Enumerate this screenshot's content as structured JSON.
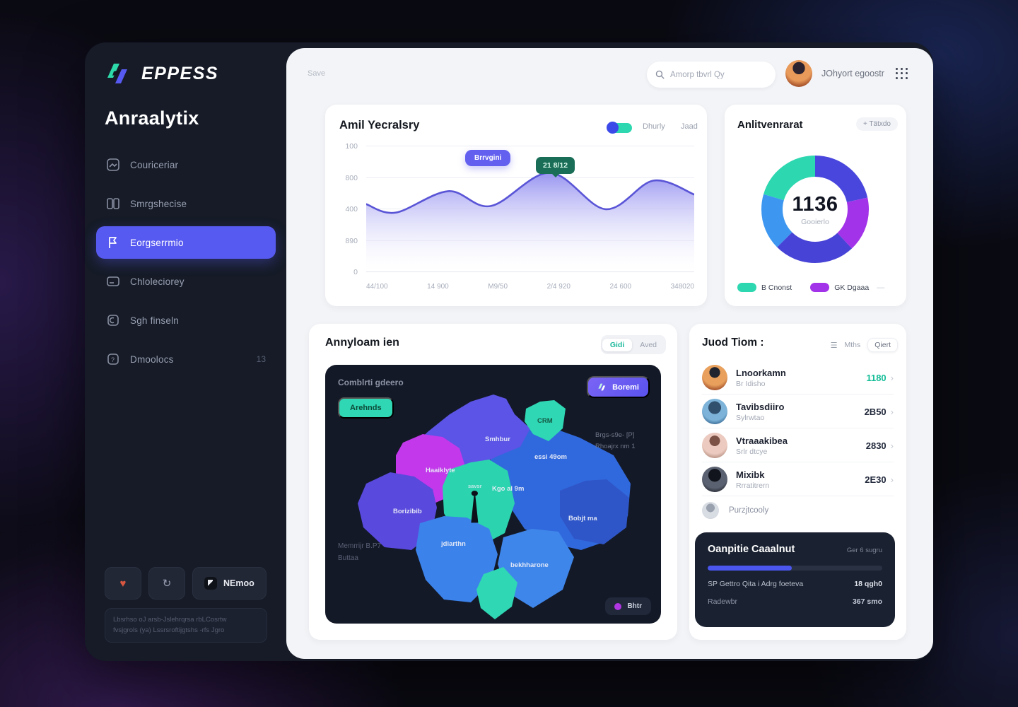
{
  "colors": {
    "accent": "#575af0",
    "teal": "#2dd7b0",
    "purple": "#a233e8",
    "blue": "#3d97f0",
    "indigo": "#4946dd",
    "green_value": "#15bd97",
    "line": "#5a55d6",
    "dark_card": "#1a2130",
    "map_bg": "#141927"
  },
  "sidebar": {
    "logo_text": "EPPESS",
    "title": "Anraalytix",
    "items": [
      {
        "label": "Couriceriar"
      },
      {
        "label": "Smrgshecise"
      },
      {
        "label": "Eorgserrmio"
      },
      {
        "label": "Chloleciorey"
      },
      {
        "label": "Sgh finseln"
      },
      {
        "label": "Dmoolocs",
        "badge": "13"
      }
    ],
    "footer_button_label": "NEmoo",
    "note_line1": "Lbsrhso oJ arsb-Jslehrqrsa rbLCosrtw",
    "note_line2": "fvsjgrols (ya) Lssrsroftijgtshs -rfs Jgro"
  },
  "topbar": {
    "save_label": "Save",
    "search_placeholder": "Amorp tbvrl Qy",
    "user_name": "JOhyort egoostr"
  },
  "usage_card": {
    "title": "Amil Yecralsry",
    "toggle_label_left": "Dhurly",
    "toggle_label_right": "Jaad",
    "tooltip_primary": "Brrvgini",
    "tooltip_peak": "21 8/12"
  },
  "chart_data": [
    {
      "type": "area",
      "title": "Amil Yecralsry",
      "x_ticks": [
        "44/100",
        "14 900",
        "M9/50",
        "2/4 920",
        "24 600",
        "348020"
      ],
      "y_ticks": [
        "100",
        "800",
        "400",
        "890",
        "0"
      ],
      "ylim": [
        0,
        1000
      ],
      "grid": true,
      "legend_position": "none",
      "series": [
        {
          "name": "usage",
          "points": [
            {
              "x": 0.0,
              "v": 535
            },
            {
              "x": 0.09,
              "v": 468
            },
            {
              "x": 0.25,
              "v": 638
            },
            {
              "x": 0.38,
              "v": 520
            },
            {
              "x": 0.56,
              "v": 785
            },
            {
              "x": 0.73,
              "v": 495
            },
            {
              "x": 0.875,
              "v": 722
            },
            {
              "x": 1.0,
              "v": 612
            }
          ]
        }
      ],
      "annotations": [
        "Brrvgini",
        "21 8/12"
      ]
    },
    {
      "type": "donut",
      "title": "Anlitvenrarat",
      "center_value": "1136",
      "center_label": "Gooierlo",
      "slices": [
        {
          "label": "segment-indigo-top",
          "value": 21.5,
          "color": "#4946dd"
        },
        {
          "label": "segment-purple-right",
          "value": 16.5,
          "color": "#a233e8"
        },
        {
          "label": "segment-indigo-bottom",
          "value": 24.5,
          "color": "#4743d6"
        },
        {
          "label": "segment-blue-left",
          "value": 17,
          "color": "#3d97f0"
        },
        {
          "label": "segment-teal-topleft",
          "value": 20.5,
          "color": "#2dd7b0"
        }
      ],
      "legend": [
        {
          "label": "B Cnonst",
          "color": "#2dd7b0"
        },
        {
          "label": "GK Dgaaa",
          "color": "#a233e8",
          "suffix": "—"
        }
      ]
    }
  ],
  "donut_card": {
    "action_label": "+ Tätxdo"
  },
  "map_card": {
    "title": "Annyloam ien",
    "segment_left": "Gidi",
    "segment_right": "Aved",
    "subtitle": "Comblrti gdeero",
    "pill_label": "Arehnds",
    "button_label": "Boremi",
    "note_right_line1": "Brgs-s9e- [P]",
    "note_right_line2": "Rhoajrx nm 1",
    "note_left_line1": "Memrrijr B.P7",
    "note_left_line2": "Buttaa",
    "legend_label": "Bhtr",
    "regions": [
      {
        "label": "Smhbur"
      },
      {
        "label": "CRM"
      },
      {
        "label": "Haaiklyte"
      },
      {
        "label": "essi 49om"
      },
      {
        "label": "Kgo al 9m"
      },
      {
        "label": "Borizibib"
      },
      {
        "label": "jdiarthn"
      },
      {
        "label": "bekhharone"
      },
      {
        "label": "Bobjt ma"
      },
      {
        "label": "savsr"
      }
    ]
  },
  "team_card": {
    "title": "Juod Tiom :",
    "filter_a": "Mths",
    "filter_b": "Qiert",
    "members": [
      {
        "name": "Lnoorkamn",
        "subtitle": "Br Idisho",
        "value": "1180"
      },
      {
        "name": "Tavibsdiiro",
        "subtitle": "Sylrwtao",
        "value": "2B50"
      },
      {
        "name": "Vtraaakibea",
        "subtitle": "Srlr dtcye",
        "value": "2830"
      },
      {
        "name": "Mixibk",
        "subtitle": "Rrratitrern",
        "value": "2E30"
      },
      {
        "name": "Purzjtcooly",
        "subtitle": "",
        "value": ""
      }
    ]
  },
  "goal_card": {
    "title": "Oanpitie Caaalnut",
    "action_label": "Ger 6 sugru",
    "progress_pct": 48,
    "row1_label": "SP Gettro Qita i Adrg foeteva",
    "row1_value": "18 qgh0",
    "row2_label": "Radewbr",
    "row2_value": "367 smo"
  }
}
